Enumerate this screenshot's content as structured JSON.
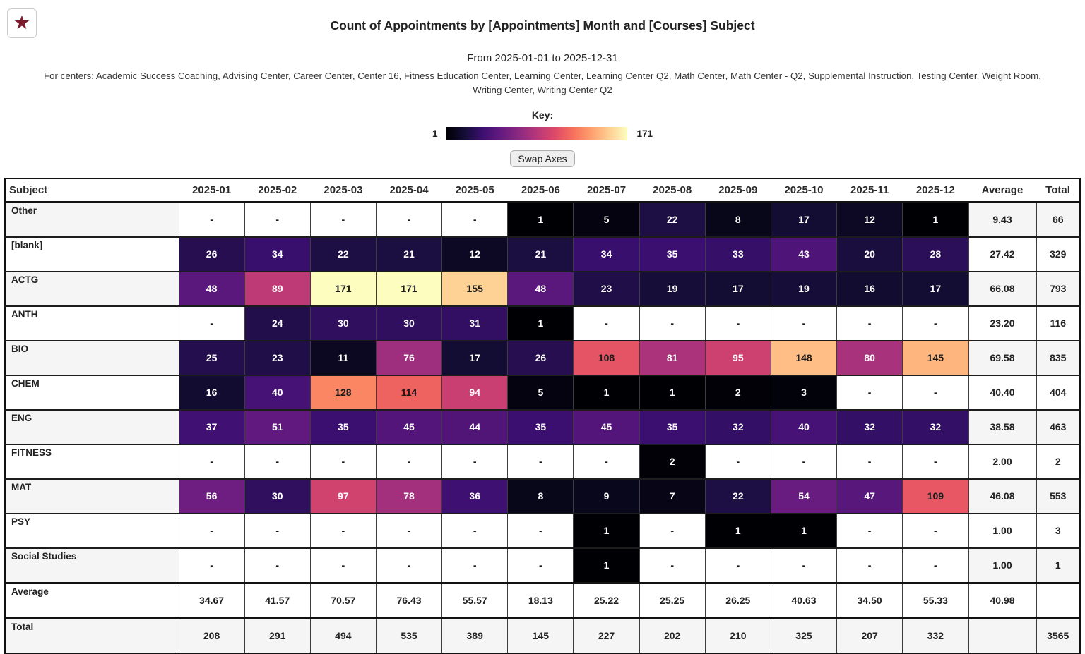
{
  "header": {
    "star_icon": "star",
    "title": "Count of Appointments by [Appointments] Month and [Courses] Subject",
    "date_range": "From 2025-01-01 to 2025-12-31",
    "centers_line": "For centers: Academic Success Coaching, Advising Center, Career Center, Center 16, Fitness Education Center, Learning Center, Learning Center Q2, Math Center, Math Center - Q2, Supplemental Instruction, Testing Center, Weight Room, Writing Center, Writing Center Q2"
  },
  "key": {
    "label": "Key:",
    "min_label": "1",
    "max_label": "171"
  },
  "controls": {
    "swap_axes": "Swap Axes"
  },
  "colors": {
    "star": "#7d1b2e",
    "stripe": "#f5f5f5",
    "blank_cell": "#ffffff",
    "border": "#111111"
  },
  "chart_data": {
    "type": "heatmap",
    "title": "Count of Appointments by [Appointments] Month and [Courses] Subject",
    "row_axis_label": "Subject",
    "col_axis_label": "Month",
    "color_scale": {
      "name": "magma",
      "min": 1,
      "max": 171,
      "stops": [
        "#000004",
        "#140e36",
        "#3b0f70",
        "#641a80",
        "#8c2981",
        "#b73779",
        "#de4968",
        "#f7705c",
        "#fe9f6d",
        "#fecf92",
        "#fcfdbf"
      ]
    },
    "columns": [
      "2025-01",
      "2025-02",
      "2025-03",
      "2025-04",
      "2025-05",
      "2025-06",
      "2025-07",
      "2025-08",
      "2025-09",
      "2025-10",
      "2025-11",
      "2025-12"
    ],
    "summary_columns": [
      "Average",
      "Total"
    ],
    "blank_display": "-",
    "rows": [
      {
        "subject": "Other",
        "values": [
          null,
          null,
          null,
          null,
          null,
          1,
          5,
          22,
          8,
          17,
          12,
          1
        ],
        "average": "9.43",
        "total": "66"
      },
      {
        "subject": "[blank]",
        "values": [
          26,
          34,
          22,
          21,
          12,
          21,
          34,
          35,
          33,
          43,
          20,
          28
        ],
        "average": "27.42",
        "total": "329"
      },
      {
        "subject": "ACTG",
        "values": [
          48,
          89,
          171,
          171,
          155,
          48,
          23,
          19,
          17,
          19,
          16,
          17
        ],
        "average": "66.08",
        "total": "793"
      },
      {
        "subject": "ANTH",
        "values": [
          null,
          24,
          30,
          30,
          31,
          1,
          null,
          null,
          null,
          null,
          null,
          null
        ],
        "average": "23.20",
        "total": "116"
      },
      {
        "subject": "BIO",
        "values": [
          25,
          23,
          11,
          76,
          17,
          26,
          108,
          81,
          95,
          148,
          80,
          145
        ],
        "average": "69.58",
        "total": "835"
      },
      {
        "subject": "CHEM",
        "values": [
          16,
          40,
          128,
          114,
          94,
          5,
          1,
          1,
          2,
          3,
          null,
          null
        ],
        "average": "40.40",
        "total": "404"
      },
      {
        "subject": "ENG",
        "values": [
          37,
          51,
          35,
          45,
          44,
          35,
          45,
          35,
          32,
          40,
          32,
          32
        ],
        "average": "38.58",
        "total": "463"
      },
      {
        "subject": "FITNESS",
        "values": [
          null,
          null,
          null,
          null,
          null,
          null,
          null,
          2,
          null,
          null,
          null,
          null
        ],
        "average": "2.00",
        "total": "2"
      },
      {
        "subject": "MAT",
        "values": [
          56,
          30,
          97,
          78,
          36,
          8,
          9,
          7,
          22,
          54,
          47,
          109
        ],
        "average": "46.08",
        "total": "553"
      },
      {
        "subject": "PSY",
        "values": [
          null,
          null,
          null,
          null,
          null,
          null,
          1,
          null,
          1,
          1,
          null,
          null
        ],
        "average": "1.00",
        "total": "3"
      },
      {
        "subject": "Social Studies",
        "values": [
          null,
          null,
          null,
          null,
          null,
          null,
          1,
          null,
          null,
          null,
          null,
          null
        ],
        "average": "1.00",
        "total": "1"
      }
    ],
    "summary_rows": [
      {
        "label": "Average",
        "values": [
          "34.67",
          "41.57",
          "70.57",
          "76.43",
          "55.57",
          "18.13",
          "25.22",
          "25.25",
          "26.25",
          "40.63",
          "34.50",
          "55.33"
        ],
        "average": "40.98",
        "total": ""
      },
      {
        "label": "Total",
        "values": [
          "208",
          "291",
          "494",
          "535",
          "389",
          "145",
          "227",
          "202",
          "210",
          "325",
          "207",
          "332"
        ],
        "average": "",
        "total": "3565"
      }
    ]
  }
}
